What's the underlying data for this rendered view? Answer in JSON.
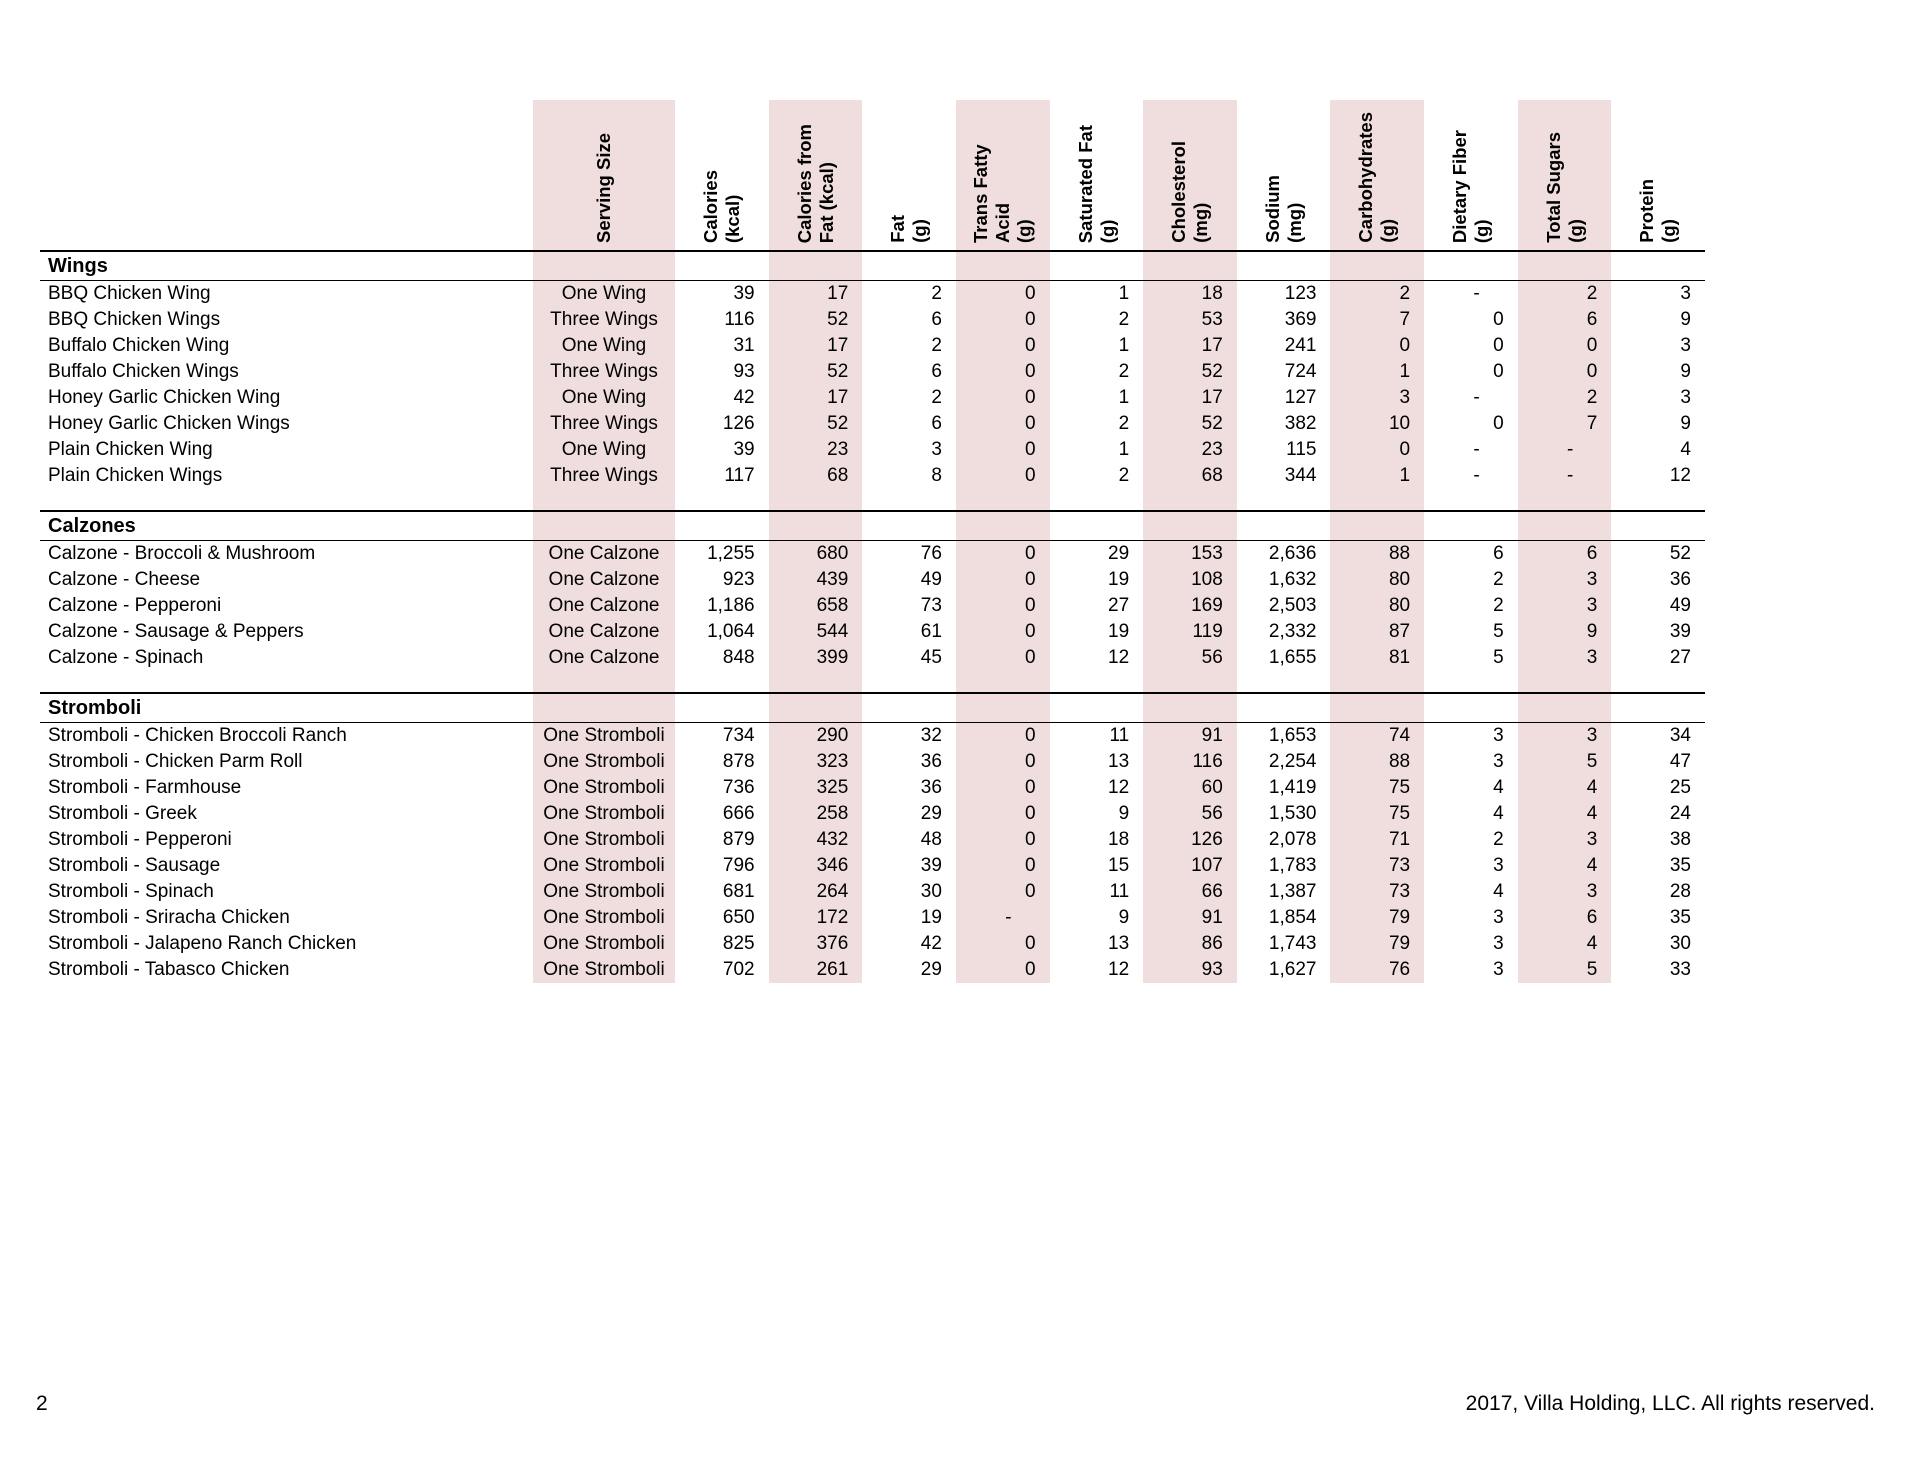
{
  "table": {
    "columns": [
      {
        "key": "serving-size",
        "label": "Serving Size",
        "shaded": true,
        "center": true
      },
      {
        "key": "calories",
        "label": "Calories\n(kcal)",
        "shaded": false
      },
      {
        "key": "calories-from-fat",
        "label": "Calories from\nFat (kcal)",
        "shaded": true
      },
      {
        "key": "fat",
        "label": "Fat\n(g)",
        "shaded": false
      },
      {
        "key": "trans-fatty-acid",
        "label": "Trans Fatty Acid\n(g)",
        "shaded": true
      },
      {
        "key": "saturated-fat",
        "label": "Saturated Fat\n(g)",
        "shaded": false
      },
      {
        "key": "cholesterol",
        "label": "Cholesterol\n(mg)",
        "shaded": true
      },
      {
        "key": "sodium",
        "label": "Sodium\n(mg)",
        "shaded": false
      },
      {
        "key": "carbohydrates",
        "label": "Carbohydrates\n(g)",
        "shaded": true
      },
      {
        "key": "dietary-fiber",
        "label": "Dietary Fiber\n(g)",
        "shaded": false
      },
      {
        "key": "total-sugars",
        "label": "Total Sugars\n(g)",
        "shaded": true
      },
      {
        "key": "protein",
        "label": "Protein\n(g)",
        "shaded": false
      }
    ],
    "sections": [
      {
        "title": "Wings",
        "rows": [
          {
            "name": "BBQ Chicken Wing",
            "values": [
              "One Wing",
              "39",
              "17",
              "2",
              "0",
              "1",
              "18",
              "123",
              "2",
              "-",
              "2",
              "3"
            ]
          },
          {
            "name": "BBQ Chicken Wings",
            "values": [
              "Three Wings",
              "116",
              "52",
              "6",
              "0",
              "2",
              "53",
              "369",
              "7",
              "0",
              "6",
              "9"
            ]
          },
          {
            "name": "Buffalo Chicken Wing",
            "values": [
              "One Wing",
              "31",
              "17",
              "2",
              "0",
              "1",
              "17",
              "241",
              "0",
              "0",
              "0",
              "3"
            ]
          },
          {
            "name": "Buffalo Chicken Wings",
            "values": [
              "Three Wings",
              "93",
              "52",
              "6",
              "0",
              "2",
              "52",
              "724",
              "1",
              "0",
              "0",
              "9"
            ]
          },
          {
            "name": "Honey Garlic Chicken Wing",
            "values": [
              "One Wing",
              "42",
              "17",
              "2",
              "0",
              "1",
              "17",
              "127",
              "3",
              "-",
              "2",
              "3"
            ]
          },
          {
            "name": "Honey Garlic Chicken Wings",
            "values": [
              "Three Wings",
              "126",
              "52",
              "6",
              "0",
              "2",
              "52",
              "382",
              "10",
              "0",
              "7",
              "9"
            ]
          },
          {
            "name": "Plain Chicken Wing",
            "values": [
              "One Wing",
              "39",
              "23",
              "3",
              "0",
              "1",
              "23",
              "115",
              "0",
              "-",
              "-",
              "4"
            ]
          },
          {
            "name": "Plain Chicken Wings",
            "values": [
              "Three Wings",
              "117",
              "68",
              "8",
              "0",
              "2",
              "68",
              "344",
              "1",
              "-",
              "-",
              "12"
            ]
          }
        ]
      },
      {
        "title": "Calzones",
        "rows": [
          {
            "name": "Calzone - Broccoli & Mushroom",
            "values": [
              "One Calzone",
              "1,255",
              "680",
              "76",
              "0",
              "29",
              "153",
              "2,636",
              "88",
              "6",
              "6",
              "52"
            ]
          },
          {
            "name": "Calzone - Cheese",
            "values": [
              "One Calzone",
              "923",
              "439",
              "49",
              "0",
              "19",
              "108",
              "1,632",
              "80",
              "2",
              "3",
              "36"
            ]
          },
          {
            "name": "Calzone - Pepperoni",
            "values": [
              "One Calzone",
              "1,186",
              "658",
              "73",
              "0",
              "27",
              "169",
              "2,503",
              "80",
              "2",
              "3",
              "49"
            ]
          },
          {
            "name": "Calzone - Sausage & Peppers",
            "values": [
              "One Calzone",
              "1,064",
              "544",
              "61",
              "0",
              "19",
              "119",
              "2,332",
              "87",
              "5",
              "9",
              "39"
            ]
          },
          {
            "name": "Calzone - Spinach",
            "values": [
              "One Calzone",
              "848",
              "399",
              "45",
              "0",
              "12",
              "56",
              "1,655",
              "81",
              "5",
              "3",
              "27"
            ]
          }
        ]
      },
      {
        "title": "Stromboli",
        "rows": [
          {
            "name": "Stromboli - Chicken Broccoli Ranch",
            "values": [
              "One Stromboli",
              "734",
              "290",
              "32",
              "0",
              "11",
              "91",
              "1,653",
              "74",
              "3",
              "3",
              "34"
            ]
          },
          {
            "name": "Stromboli - Chicken Parm Roll",
            "values": [
              "One Stromboli",
              "878",
              "323",
              "36",
              "0",
              "13",
              "116",
              "2,254",
              "88",
              "3",
              "5",
              "47"
            ]
          },
          {
            "name": "Stromboli - Farmhouse",
            "values": [
              "One Stromboli",
              "736",
              "325",
              "36",
              "0",
              "12",
              "60",
              "1,419",
              "75",
              "4",
              "4",
              "25"
            ]
          },
          {
            "name": "Stromboli - Greek",
            "values": [
              "One Stromboli",
              "666",
              "258",
              "29",
              "0",
              "9",
              "56",
              "1,530",
              "75",
              "4",
              "4",
              "24"
            ]
          },
          {
            "name": "Stromboli - Pepperoni",
            "values": [
              "One Stromboli",
              "879",
              "432",
              "48",
              "0",
              "18",
              "126",
              "2,078",
              "71",
              "2",
              "3",
              "38"
            ]
          },
          {
            "name": "Stromboli - Sausage",
            "values": [
              "One Stromboli",
              "796",
              "346",
              "39",
              "0",
              "15",
              "107",
              "1,783",
              "73",
              "3",
              "4",
              "35"
            ]
          },
          {
            "name": "Stromboli - Spinach",
            "values": [
              "One Stromboli",
              "681",
              "264",
              "30",
              "0",
              "11",
              "66",
              "1,387",
              "73",
              "4",
              "3",
              "28"
            ]
          },
          {
            "name": "Stromboli - Sriracha Chicken",
            "values": [
              "One Stromboli",
              "650",
              "172",
              "19",
              "-",
              "9",
              "91",
              "1,854",
              "79",
              "3",
              "6",
              "35"
            ]
          },
          {
            "name": "Stromboli - Jalapeno Ranch Chicken",
            "values": [
              "One Stromboli",
              "825",
              "376",
              "42",
              "0",
              "13",
              "86",
              "1,743",
              "79",
              "3",
              "4",
              "30"
            ]
          },
          {
            "name": "Stromboli - Tabasco Chicken",
            "values": [
              "One Stromboli",
              "702",
              "261",
              "29",
              "0",
              "12",
              "93",
              "1,627",
              "76",
              "3",
              "5",
              "33"
            ]
          }
        ]
      }
    ]
  },
  "footer": {
    "page_number": "2",
    "copyright": "2017, Villa Holding, LLC. All rights reserved."
  },
  "colors": {
    "column_shade": "#f0dede",
    "text": "#000000",
    "rule_line": "#000000"
  }
}
